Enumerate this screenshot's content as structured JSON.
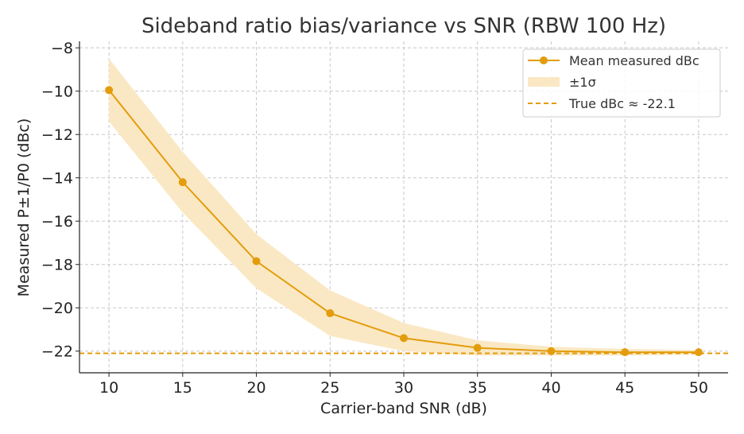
{
  "chart_data": {
    "type": "line",
    "title": "Sideband ratio bias/variance vs SNR (RBW 100 Hz)",
    "xlabel": "Carrier-band SNR (dB)",
    "ylabel": "Measured P±1/P0 (dBc)",
    "xlim": [
      8,
      52
    ],
    "ylim": [
      -23,
      -7.7
    ],
    "x_ticks": [
      10,
      15,
      20,
      25,
      30,
      35,
      40,
      45,
      50
    ],
    "y_ticks": [
      -22,
      -20,
      -18,
      -16,
      -14,
      -12,
      -10,
      -8
    ],
    "x_tick_labels": [
      "10",
      "15",
      "20",
      "25",
      "30",
      "35",
      "40",
      "45",
      "50"
    ],
    "y_tick_labels": [
      "−22",
      "−20",
      "−18",
      "−16",
      "−14",
      "−12",
      "−10",
      "−8"
    ],
    "grid": true,
    "legend_position": "top-right",
    "x": [
      10,
      15,
      20,
      25,
      30,
      35,
      40,
      45,
      50
    ],
    "series": [
      {
        "name": "Mean measured dBc",
        "values": [
          -9.95,
          -14.2,
          -17.85,
          -20.25,
          -21.4,
          -21.85,
          -22.0,
          -22.05,
          -22.05
        ],
        "color": "#e39c0c"
      },
      {
        "name": "±1σ",
        "upper": [
          -8.5,
          -12.8,
          -16.6,
          -19.2,
          -20.7,
          -21.5,
          -21.8,
          -21.9,
          -21.95
        ],
        "lower": [
          -11.4,
          -15.6,
          -19.1,
          -21.3,
          -22.0,
          -22.2,
          -22.2,
          -22.2,
          -22.15
        ],
        "color": "#fae8c4"
      },
      {
        "name": "True dBc ≈ -22.1",
        "value": -22.1,
        "color": "#e39c0c"
      }
    ]
  }
}
